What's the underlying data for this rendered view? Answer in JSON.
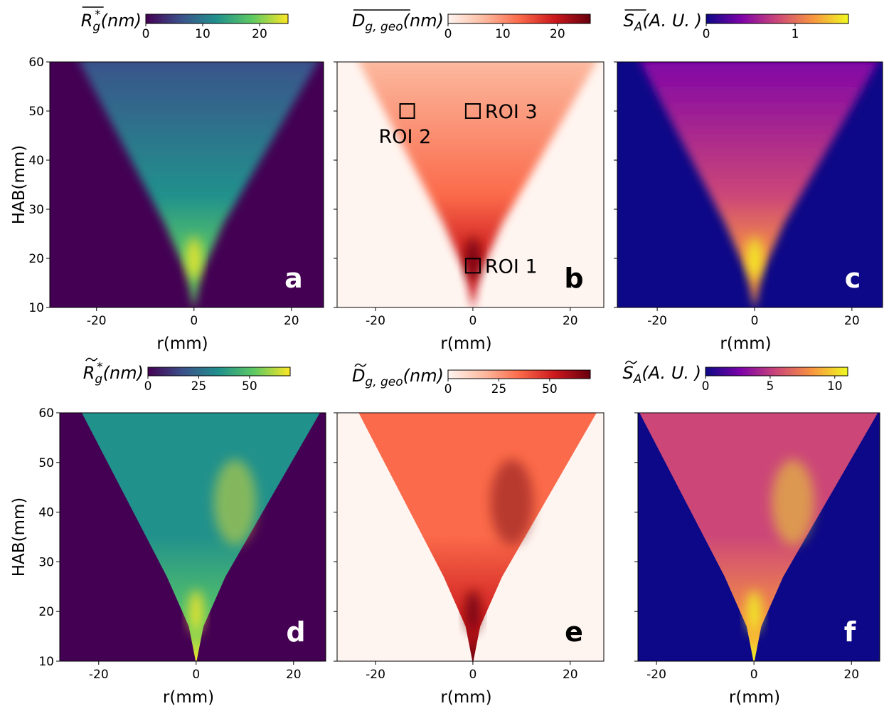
{
  "chart_data": [
    {
      "type": "heatmap",
      "panel_label": "a",
      "label_color": "#ffffff",
      "xlabel": "r(mm)",
      "ylabel": "HAB(mm)",
      "xlim": [
        -29.6,
        26.6
      ],
      "xticks": [
        -20,
        0,
        20
      ],
      "ylim": [
        10,
        60
      ],
      "yticks": [
        10,
        20,
        30,
        40,
        50,
        60
      ],
      "colorbar": {
        "symbol": "R",
        "sub": "g",
        "sup": "*",
        "unit": "(nm)",
        "accent": "bar",
        "lim": [
          0,
          25
        ],
        "ticks": [
          0,
          10,
          20
        ],
        "colormap": [
          "#440154",
          "#3b528b",
          "#21918c",
          "#5ec962",
          "#fde725"
        ]
      }
    },
    {
      "type": "heatmap",
      "panel_label": "b",
      "label_color": "#000000",
      "xlabel": "r(mm)",
      "xlim": [
        -27.9,
        26.9
      ],
      "xticks": [
        -20,
        0,
        20
      ],
      "ylim": [
        10,
        60
      ],
      "yticks": [
        10,
        20,
        30,
        40,
        50,
        60
      ],
      "colorbar": {
        "symbol": "D",
        "sub": "g, geo",
        "unit": "(nm)",
        "accent": "bar",
        "lim": [
          0,
          26
        ],
        "ticks": [
          0,
          10,
          20
        ],
        "colormap": [
          "#fff5f0",
          "#fcbba1",
          "#fb6a4a",
          "#cb181d",
          "#67000d"
        ]
      },
      "annotations": [
        {
          "text": "ROI 2",
          "x": -13.5,
          "y": 50
        },
        {
          "text": "ROI 3",
          "x": 0,
          "y": 50
        },
        {
          "text": "ROI 1",
          "x": 0,
          "y": 18.5
        }
      ]
    },
    {
      "type": "heatmap",
      "panel_label": "c",
      "label_color": "#ffffff",
      "xlabel": "r(mm)",
      "xlim": [
        -28.2,
        26.3
      ],
      "xticks": [
        -20,
        0,
        20
      ],
      "ylim": [
        10,
        60
      ],
      "yticks": [
        10,
        20,
        30,
        40,
        50,
        60
      ],
      "colorbar": {
        "symbol": "S",
        "sub": "A",
        "unit": "(A. U. )",
        "accent": "bar",
        "lim": [
          0,
          1.6
        ],
        "ticks": [
          0,
          1
        ],
        "colormap": [
          "#0d0887",
          "#7e03a8",
          "#cc4778",
          "#f89540",
          "#f0f921"
        ]
      }
    },
    {
      "type": "heatmap",
      "panel_label": "d",
      "label_color": "#ffffff",
      "xlabel": "r(mm)",
      "ylabel": "HAB(mm)",
      "xlim": [
        -28,
        26.6
      ],
      "xticks": [
        -20,
        0,
        20
      ],
      "ylim": [
        10,
        60
      ],
      "yticks": [
        10,
        20,
        30,
        40,
        50,
        60
      ],
      "colorbar": {
        "symbol": "R",
        "sub": "g",
        "sup": "*",
        "unit": "(nm)",
        "accent": "tilde",
        "lim": [
          0,
          70
        ],
        "ticks": [
          0,
          25,
          50
        ],
        "colormap": [
          "#440154",
          "#3b528b",
          "#21918c",
          "#5ec962",
          "#fde725"
        ]
      }
    },
    {
      "type": "heatmap",
      "panel_label": "e",
      "label_color": "#000000",
      "xlabel": "r(mm)",
      "xlim": [
        -27.9,
        26.9
      ],
      "xticks": [
        -20,
        0,
        20
      ],
      "ylim": [
        10,
        60
      ],
      "yticks": [
        10,
        20,
        30,
        40,
        50,
        60
      ],
      "colorbar": {
        "symbol": "D",
        "sub": "g, geo",
        "unit": "(nm)",
        "accent": "tilde",
        "lim": [
          0,
          70
        ],
        "ticks": [
          0,
          25,
          50
        ],
        "colormap": [
          "#fff5f0",
          "#fcbba1",
          "#fb6a4a",
          "#cb181d",
          "#67000d"
        ]
      }
    },
    {
      "type": "heatmap",
      "panel_label": "f",
      "label_color": "#ffffff",
      "xlabel": "r(mm)",
      "xlim": [
        -23.8,
        25.8
      ],
      "xticks": [
        -20,
        0,
        20
      ],
      "ylim": [
        10,
        60
      ],
      "yticks": [
        10,
        20,
        30,
        40,
        50,
        60
      ],
      "colorbar": {
        "symbol": "S",
        "sub": "A",
        "unit": "(A. U. )",
        "accent": "tilde",
        "lim": [
          0,
          11
        ],
        "ticks": [
          0,
          5,
          10
        ],
        "colormap": [
          "#0d0887",
          "#7e03a8",
          "#cc4778",
          "#f89540",
          "#f0f921"
        ]
      }
    }
  ]
}
